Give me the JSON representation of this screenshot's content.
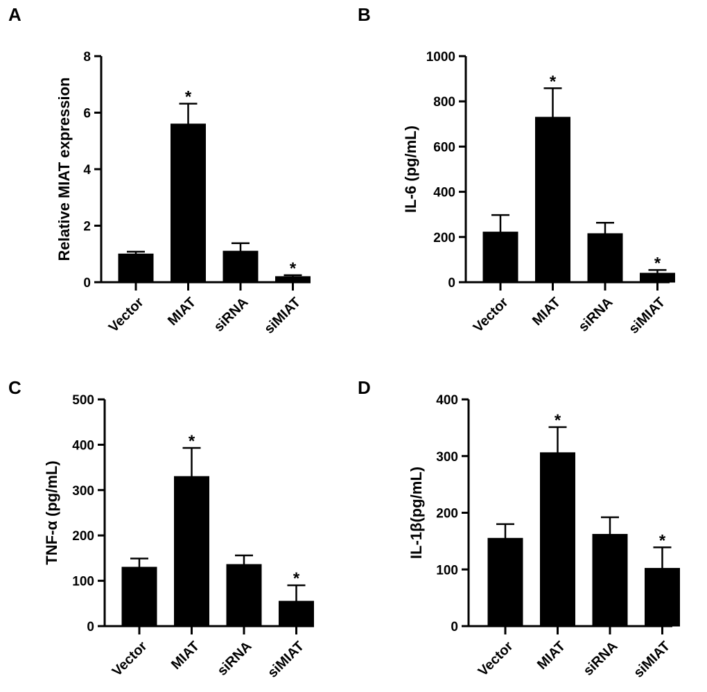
{
  "chart_data": [
    {
      "panel": "A",
      "type": "bar",
      "categories": [
        "Vector",
        "MIAT",
        "siRNA",
        "siMIAT"
      ],
      "values": [
        1.0,
        5.6,
        1.1,
        0.2
      ],
      "errors": [
        0.08,
        0.72,
        0.28,
        0.05
      ],
      "significance": [
        "",
        "*",
        "",
        "*"
      ],
      "ylabel": "Relative MIAT expression",
      "ylim": [
        0,
        8
      ],
      "yticks": [
        0,
        2,
        4,
        6,
        8
      ],
      "grid": false,
      "bar_color": "#000000"
    },
    {
      "panel": "B",
      "type": "bar",
      "categories": [
        "Vector",
        "MIAT",
        "siRNA",
        "siMIAT"
      ],
      "values": [
        222,
        730,
        215,
        40
      ],
      "errors": [
        75,
        128,
        48,
        14
      ],
      "significance": [
        "",
        "*",
        "",
        "*"
      ],
      "ylabel": "IL-6 (pg/mL)",
      "ylim": [
        0,
        1000
      ],
      "yticks": [
        0,
        200,
        400,
        600,
        800,
        1000
      ],
      "grid": false,
      "bar_color": "#000000"
    },
    {
      "panel": "C",
      "type": "bar",
      "categories": [
        "Vector",
        "MIAT",
        "siRNA",
        "siMIAT"
      ],
      "values": [
        130,
        330,
        136,
        55
      ],
      "errors": [
        19,
        63,
        20,
        35
      ],
      "significance": [
        "",
        "*",
        "",
        "*"
      ],
      "ylabel": "TNF-α (pg/mL)",
      "ylim": [
        0,
        500
      ],
      "yticks": [
        0,
        100,
        200,
        300,
        400,
        500
      ],
      "grid": false,
      "bar_color": "#000000"
    },
    {
      "panel": "D",
      "type": "bar",
      "categories": [
        "Vector",
        "MIAT",
        "siRNA",
        "siMIAT"
      ],
      "values": [
        155,
        306,
        162,
        102
      ],
      "errors": [
        25,
        45,
        30,
        37
      ],
      "significance": [
        "",
        "*",
        "",
        "*"
      ],
      "ylabel": "IL-1β(pg/mL)",
      "ylim": [
        0,
        400
      ],
      "yticks": [
        0,
        100,
        200,
        300,
        400
      ],
      "grid": false,
      "bar_color": "#000000"
    }
  ]
}
